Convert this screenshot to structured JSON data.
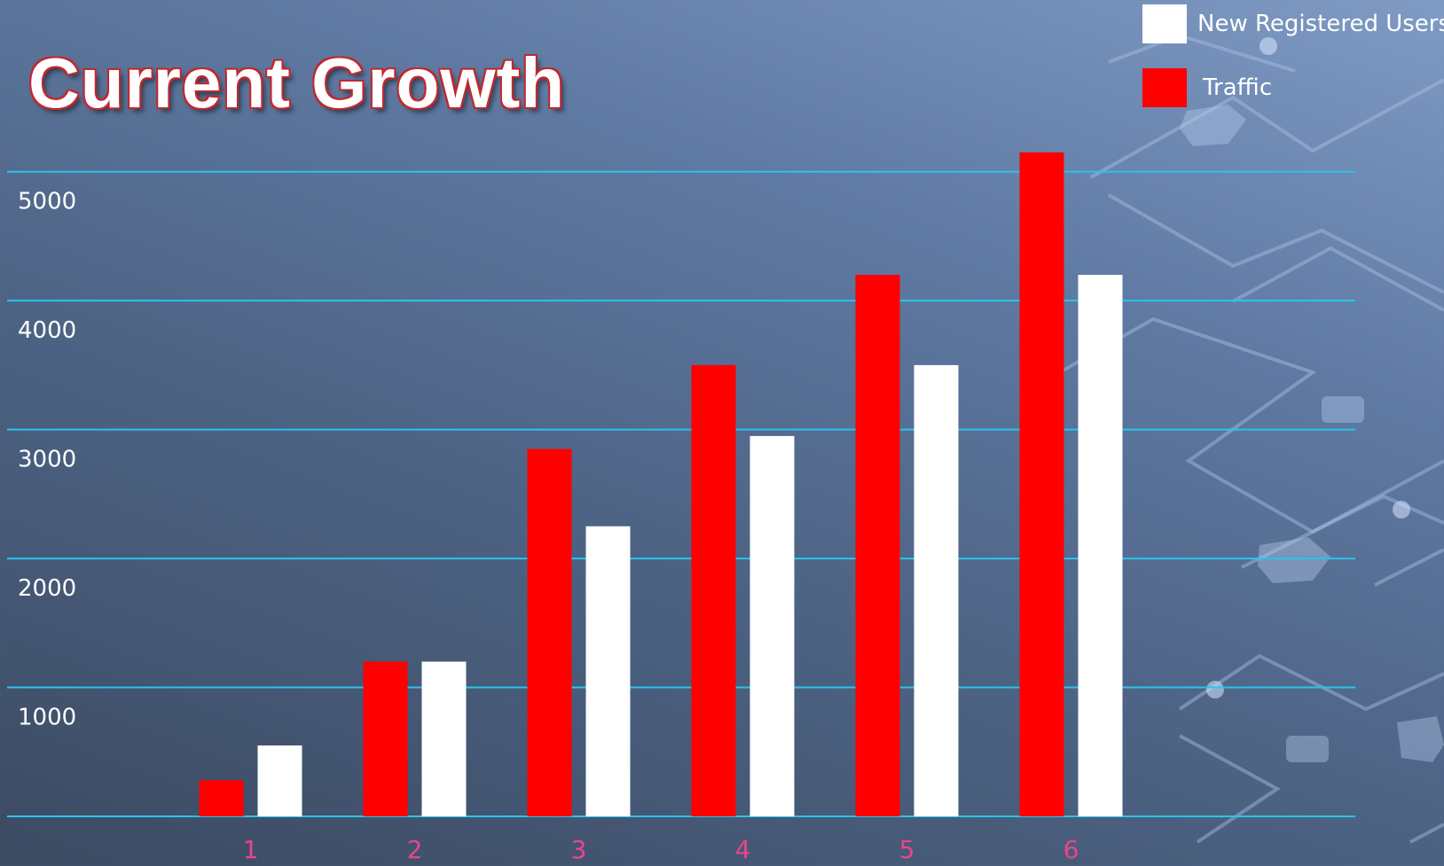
{
  "chart_data": {
    "type": "bar",
    "title": "Current Growth",
    "xlabel": "",
    "ylabel": "",
    "categories": [
      "1",
      "2",
      "3",
      "4",
      "5",
      "6"
    ],
    "series": [
      {
        "name": "Traffic",
        "color": "#ff0000",
        "values": [
          280,
          1200,
          2850,
          3500,
          4200,
          5150
        ]
      },
      {
        "name": "New Registered Users",
        "color": "#ffffff",
        "values": [
          550,
          1200,
          2250,
          2950,
          3500,
          4200
        ]
      }
    ],
    "yticks": [
      1000,
      2000,
      3000,
      4000,
      5000
    ],
    "ylim": [
      0,
      5500
    ],
    "grid": true,
    "gridline_color": "#29c4ec",
    "legend_placement": "top-right"
  }
}
